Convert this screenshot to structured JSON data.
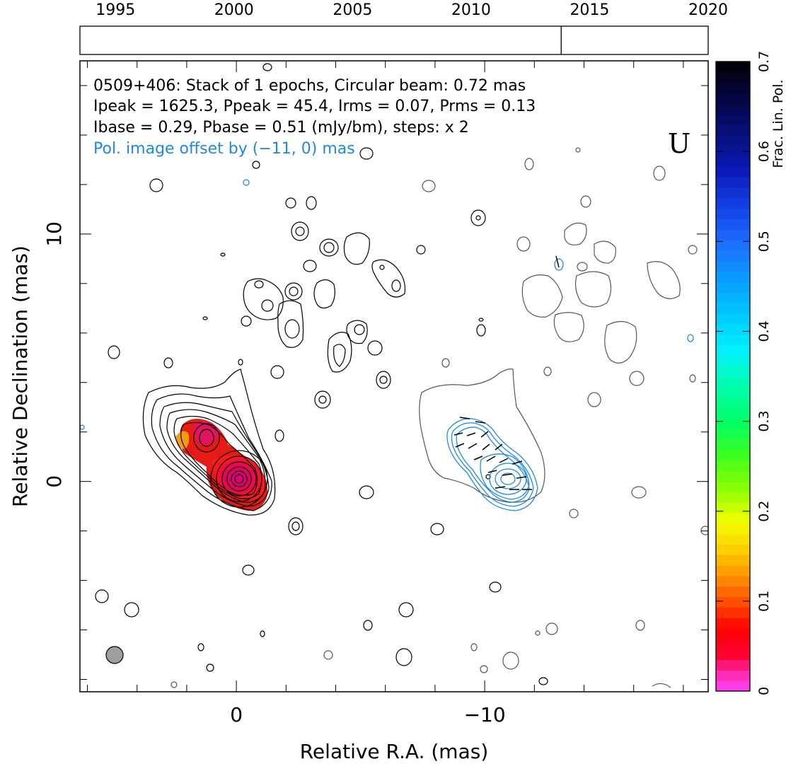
{
  "chart_data": {
    "type": "contour",
    "timeline": {
      "ticks": [
        1995,
        2000,
        2005,
        2010,
        2015,
        2020
      ],
      "range": [
        1993.5,
        2020
      ],
      "epochs": [
        2013.8
      ]
    },
    "info_lines": [
      "0509+406: Stack of 1 epochs, Circular beam: 0.72 mas",
      "Ipeak = 1625.3, Ppeak = 45.4, Irms = 0.07, Prms = 0.13",
      "Ibase = 0.29, Pbase = 0.51 (mJy/bm), steps: x 2"
    ],
    "offset_note": "Pol. image offset by (−11, 0) mas",
    "band_label": "U",
    "xlabel": "Relative R.A. (mas)",
    "ylabel": "Relative Declination (mas)",
    "x_range": [
      6.3,
      -19
    ],
    "y_range": [
      -8.5,
      17
    ],
    "x_ticks": [
      {
        "value": 0,
        "label": "0"
      },
      {
        "value": -10,
        "label": "−10"
      }
    ],
    "y_ticks": [
      {
        "value": 0,
        "label": "0"
      },
      {
        "value": 10,
        "label": "10"
      }
    ],
    "colorbar": {
      "label": "Frac. Lin. Pol.",
      "range": [
        0,
        0.7
      ],
      "ticks": [
        0,
        0.1,
        0.2,
        0.3,
        0.4,
        0.5,
        0.6,
        0.7
      ]
    },
    "colors": {
      "stokes_i_contour": "#000000",
      "offset_i_contour": "#555555",
      "pol_contour": "#1e88e5",
      "annotation_blue": "#1e88e5",
      "beam_fill": "#9e9e9e"
    },
    "core": {
      "x": 0,
      "y": 0
    },
    "jet_knot": {
      "x": 1.4,
      "y": 1.7
    },
    "beam_diameter_mas": 0.72,
    "pol_offset_mas": [
      -11,
      0
    ]
  }
}
